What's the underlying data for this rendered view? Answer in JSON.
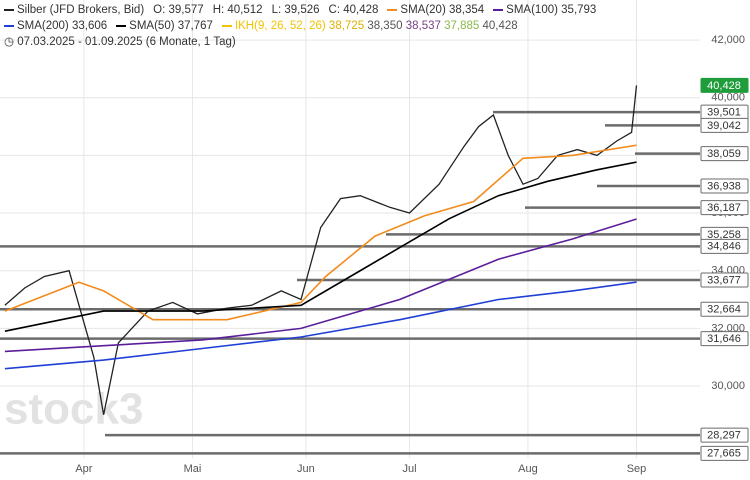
{
  "chart_data": {
    "type": "line",
    "header": {
      "instrument": "Silber (JFD Brokers, Bid)",
      "ohlc": [
        "O: 39,577",
        "H: 40,512",
        "L: 39,526",
        "C: 40,428"
      ],
      "range": "07.03.2025 - 01.09.2025 (6 Monate, 1 Tag)",
      "ichimoku": {
        "name": "IKH(9, 26, 52, 26)",
        "color": "#f2c200",
        "values": [
          "38,725",
          "38,350",
          "38,537",
          "37,885",
          "40,428"
        ],
        "value_colors": [
          "#e0b000",
          "#555555",
          "#7a3e8a",
          "#8ab84a",
          "#555555"
        ]
      }
    },
    "watermark": "stock3",
    "xlim": [
      -1,
      151
    ],
    "ylim": [
      26740,
      43390
    ],
    "xticks": [
      {
        "value": 16,
        "label": "Apr"
      },
      {
        "value": 38,
        "label": "Mai"
      },
      {
        "value": 61,
        "label": "Jun"
      },
      {
        "value": 82,
        "label": "Jul"
      },
      {
        "value": 106,
        "label": "Aug"
      },
      {
        "value": 128,
        "label": "Sep"
      }
    ],
    "yticks": [
      {
        "value": 30000,
        "label": "30,000"
      },
      {
        "value": 32000,
        "label": "32,000"
      },
      {
        "value": 34000,
        "label": "34,000"
      },
      {
        "value": 36000,
        "label": "36,000"
      },
      {
        "value": 38000,
        "label": "38,000"
      },
      {
        "value": 40000,
        "label": "40,000"
      },
      {
        "value": 42000,
        "label": "42,000"
      }
    ],
    "grid": true,
    "series": [
      {
        "name": "Silber (JFD Brokers, Bid)",
        "color": "#222222",
        "x": [
          0,
          4,
          8,
          13,
          18,
          20,
          23,
          29,
          34,
          39,
          45,
          50,
          56,
          60,
          64,
          68,
          72,
          78,
          82,
          88,
          93,
          96,
          99,
          102,
          105,
          108,
          112,
          116,
          120,
          124,
          127,
          128
        ],
        "values": [
          32800,
          33400,
          33800,
          34000,
          31000,
          29000,
          31500,
          32600,
          32900,
          32500,
          32700,
          32800,
          33300,
          33000,
          35500,
          36500,
          36600,
          36200,
          36000,
          37000,
          38300,
          39000,
          39400,
          38000,
          37000,
          37200,
          38000,
          38200,
          38000,
          38500,
          38800,
          40428
        ]
      },
      {
        "name": "SMA(20)",
        "legend_value": "38,354",
        "color": "#f28c1e",
        "x": [
          0,
          15,
          20,
          30,
          45,
          60,
          65,
          75,
          85,
          95,
          105,
          115,
          128
        ],
        "values": [
          32600,
          33600,
          33300,
          32300,
          32300,
          32900,
          33800,
          35200,
          35900,
          36400,
          37900,
          38000,
          38354
        ]
      },
      {
        "name": "SMA(100)",
        "legend_value": "35,793",
        "color": "#5b1e9a",
        "x": [
          0,
          20,
          40,
          60,
          80,
          100,
          115,
          128
        ],
        "values": [
          31200,
          31400,
          31600,
          32000,
          33000,
          34400,
          35100,
          35793
        ]
      },
      {
        "name": "SMA(200)",
        "legend_value": "33,606",
        "color": "#1f3fd6",
        "x": [
          0,
          20,
          40,
          60,
          80,
          100,
          115,
          128
        ],
        "values": [
          30600,
          30900,
          31300,
          31700,
          32300,
          33000,
          33300,
          33606
        ]
      },
      {
        "name": "SMA(50)",
        "legend_value": "37,767",
        "color": "#000000",
        "x": [
          0,
          20,
          40,
          60,
          70,
          80,
          90,
          100,
          110,
          120,
          128
        ],
        "values": [
          31900,
          32600,
          32600,
          32800,
          33800,
          34800,
          35800,
          36600,
          37100,
          37500,
          37767
        ]
      }
    ],
    "levels": [
      {
        "value": 40428,
        "label": "40,428"
      },
      {
        "value": 39501,
        "label": "39,501"
      },
      {
        "value": 39042,
        "label": "39,042"
      },
      {
        "value": 38059,
        "label": "38,059"
      },
      {
        "value": 36938,
        "label": "36,938"
      },
      {
        "value": 36187,
        "label": "36,187"
      },
      {
        "value": 35258,
        "label": "35,258"
      },
      {
        "value": 34846,
        "label": "34,846"
      },
      {
        "value": 33677,
        "label": "33,677"
      },
      {
        "value": 32664,
        "label": "32,664"
      },
      {
        "value": 31646,
        "label": "31,646"
      },
      {
        "value": 28297,
        "label": "28,297"
      },
      {
        "value": 27665,
        "label": "27,665"
      }
    ]
  }
}
